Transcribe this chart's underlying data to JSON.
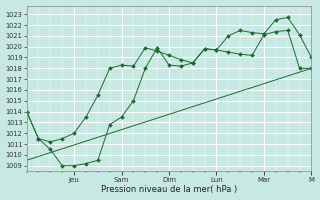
{
  "bg_color": "#c8e8e4",
  "grid_color": "#b0d8d4",
  "grid_color_minor": "#c0e0dc",
  "line_color": "#1a6b2a",
  "xlabel": "Pression niveau de la mer( hPa )",
  "ylim": [
    1008.5,
    1023.8
  ],
  "yticks": [
    1009,
    1010,
    1011,
    1012,
    1013,
    1014,
    1015,
    1016,
    1017,
    1018,
    1019,
    1020,
    1021,
    1022,
    1023
  ],
  "xlim": [
    0,
    24
  ],
  "x_major_positions": [
    4,
    8,
    12,
    16,
    20,
    24
  ],
  "x_major_labels": [
    "Jeu",
    "Sam",
    "Dim",
    "Lun",
    "Mar",
    "M"
  ],
  "x_minor_positions": [
    0,
    1,
    2,
    3,
    4,
    5,
    6,
    7,
    8,
    9,
    10,
    11,
    12,
    13,
    14,
    15,
    16,
    17,
    18,
    19,
    20,
    21,
    22,
    23,
    24
  ],
  "series1_x": [
    0,
    1,
    2,
    3,
    4,
    5,
    6,
    7,
    8,
    9,
    10,
    11,
    12,
    13,
    14,
    15,
    16,
    17,
    18,
    19,
    20,
    21,
    22,
    23,
    24
  ],
  "series1_y": [
    1014.0,
    1011.5,
    1011.2,
    1011.5,
    1012.0,
    1013.5,
    1015.5,
    1018.0,
    1018.3,
    1018.2,
    1019.9,
    1019.6,
    1019.2,
    1018.8,
    1018.5,
    1019.8,
    1019.7,
    1019.5,
    1019.3,
    1019.2,
    1021.1,
    1021.4,
    1021.5,
    1018.0,
    1018.0
  ],
  "series2_x": [
    0,
    1,
    2,
    3,
    4,
    5,
    6,
    7,
    8,
    9,
    10,
    11,
    12,
    13,
    14,
    15,
    16,
    17,
    18,
    19,
    20,
    21,
    22,
    23,
    24
  ],
  "series2_y": [
    1014.0,
    1011.5,
    1010.5,
    1009.0,
    1009.0,
    1009.2,
    1009.5,
    1012.8,
    1013.5,
    1015.0,
    1018.0,
    1019.9,
    1018.3,
    1018.2,
    1018.5,
    1019.8,
    1019.7,
    1021.0,
    1021.5,
    1021.3,
    1021.2,
    1022.5,
    1022.7,
    1021.1,
    1019.0
  ],
  "series3_x": [
    0,
    24
  ],
  "series3_y": [
    1009.5,
    1018.0
  ]
}
